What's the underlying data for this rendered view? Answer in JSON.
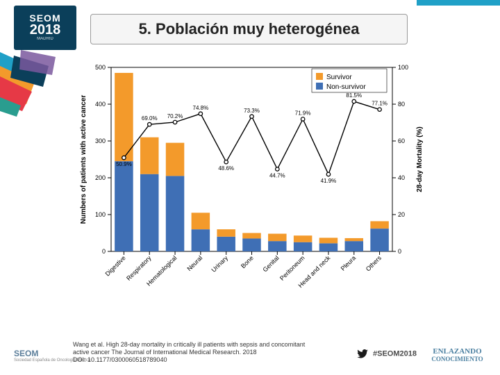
{
  "logo": {
    "line1": "SEOM",
    "line2": "2018",
    "sub": "MADRID"
  },
  "title": "5. Población muy heterogénea",
  "citation_l1": "Wang et al. High 28-day mortality in critically ill patients with sepsis and concomitant",
  "citation_l2": "active cancer The Journal of International Medical Research. 2018",
  "citation_l3": "DOI: 10.1177/0300060518789040",
  "footer_brand": "SEOM",
  "footer_brand_sub": "Sociedad Española de Oncología Médica",
  "hashtag": "#SEOM2018",
  "enlazando_l1": "ENLAZANDO",
  "enlazando_l2": "CONOCIMIENTO",
  "chart": {
    "type": "stacked-bar + line",
    "ylabel_left": "Numbers of patients with active cancer",
    "ylabel_right": "28-day Mortality (%)",
    "ylim_left": [
      0,
      500
    ],
    "ytick_left": [
      0,
      100,
      200,
      300,
      400,
      500
    ],
    "ylim_right": [
      0,
      100
    ],
    "ytick_right": [
      0,
      20,
      40,
      60,
      80,
      100
    ],
    "categories": [
      "Digestive",
      "Respiratory",
      "Hematological",
      "Neural",
      "Urinary",
      "Bone",
      "Genital",
      "Peritoneum",
      "Head and neck",
      "Pleura",
      "Others"
    ],
    "legend": [
      {
        "label": "Survivor",
        "color": "#f39a2b",
        "marker": "square"
      },
      {
        "label": "Non-survivor",
        "color": "#3f6fb5",
        "marker": "square"
      }
    ],
    "survivor": [
      240,
      100,
      90,
      45,
      20,
      15,
      20,
      18,
      15,
      8,
      20
    ],
    "non_survivor": [
      245,
      210,
      205,
      60,
      40,
      35,
      28,
      25,
      22,
      28,
      62
    ],
    "mortality_pct": [
      50.9,
      69.0,
      70.2,
      74.8,
      48.6,
      73.3,
      44.7,
      71.9,
      41.9,
      81.5,
      77.1
    ],
    "mortality_labels": [
      "50.9%",
      "69.0%",
      "70.2%",
      "74.8%",
      "48.6%",
      "73.3%",
      "44.7%",
      "71.9%",
      "41.9%",
      "81.5%",
      "77.1%"
    ],
    "bar_width": 0.72,
    "colors": {
      "survivor": "#f39a2b",
      "non_survivor": "#3f6fb5",
      "line": "#000000",
      "axis": "#000",
      "text": "#000",
      "bg": "#ffffff"
    },
    "font": {
      "label_pt": 10,
      "tick_pt": 9,
      "legend_pt": 10,
      "data_label_pt": 8
    }
  },
  "deco_colors": [
    "#20a0c7",
    "#f39a2b",
    "#e63946",
    "#0b3f5a",
    "#7a589e",
    "#f0c419",
    "#2a9d8f"
  ]
}
